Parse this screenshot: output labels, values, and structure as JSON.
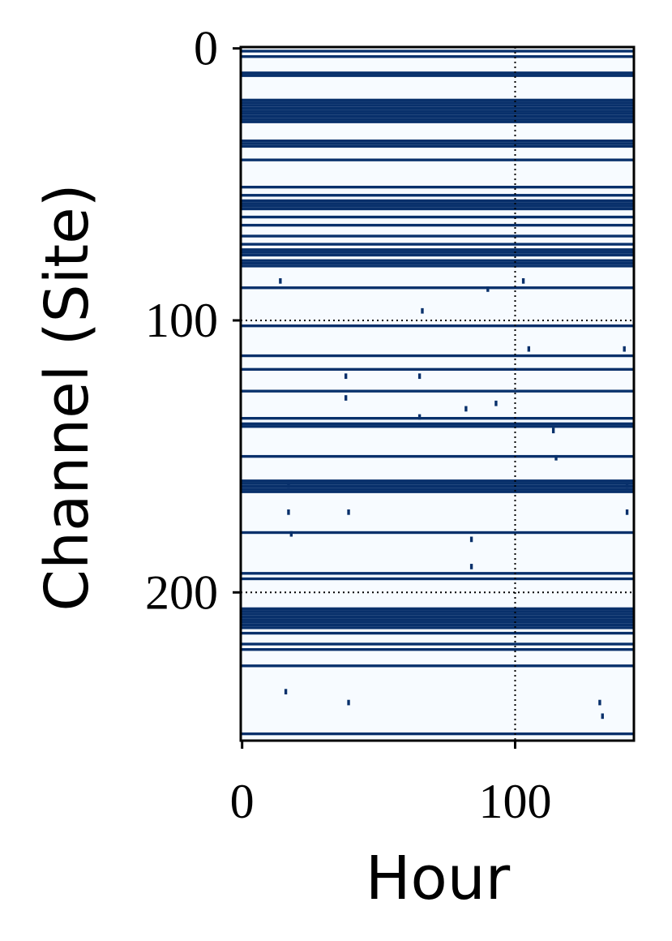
{
  "chart_data": {
    "type": "heatmap",
    "xlabel": "Hour",
    "ylabel": "Channel (Site)",
    "xlim": [
      -0.5,
      143.5
    ],
    "ylim": [
      -0.5,
      254.5
    ],
    "y_inverted": true,
    "xticks": [
      0,
      100
    ],
    "yticks": [
      0,
      100,
      200
    ],
    "reference_x": [
      100
    ],
    "reference_y": [
      100,
      200
    ],
    "low_color": "#f7fbff",
    "high_color": "#08306b",
    "dark_rows": [
      1,
      3,
      9,
      10,
      19,
      20,
      21,
      22,
      23,
      24,
      25,
      26,
      27,
      34,
      35,
      36,
      41,
      51,
      54,
      56,
      57,
      58,
      59,
      62,
      65,
      69,
      72,
      74,
      75,
      76,
      78,
      79,
      80,
      88,
      102,
      113,
      118,
      126,
      136,
      138,
      139,
      150,
      159,
      160,
      161,
      162,
      163,
      178,
      193,
      195,
      206,
      207,
      208,
      209,
      210,
      211,
      212,
      213,
      215,
      219,
      221,
      227,
      252
    ],
    "speckles": {
      "x": [
        17,
        17,
        18,
        38,
        38,
        39,
        39,
        65,
        65,
        66,
        84,
        84,
        90,
        93,
        103,
        105,
        114,
        115,
        131,
        132,
        140,
        141,
        141,
        14,
        16,
        82
      ],
      "y": [
        160,
        170,
        178,
        120,
        128,
        170,
        240,
        120,
        135,
        96,
        180,
        190,
        88,
        130,
        85,
        110,
        140,
        150,
        240,
        245,
        110,
        160,
        170,
        85,
        236,
        132
      ]
    }
  }
}
